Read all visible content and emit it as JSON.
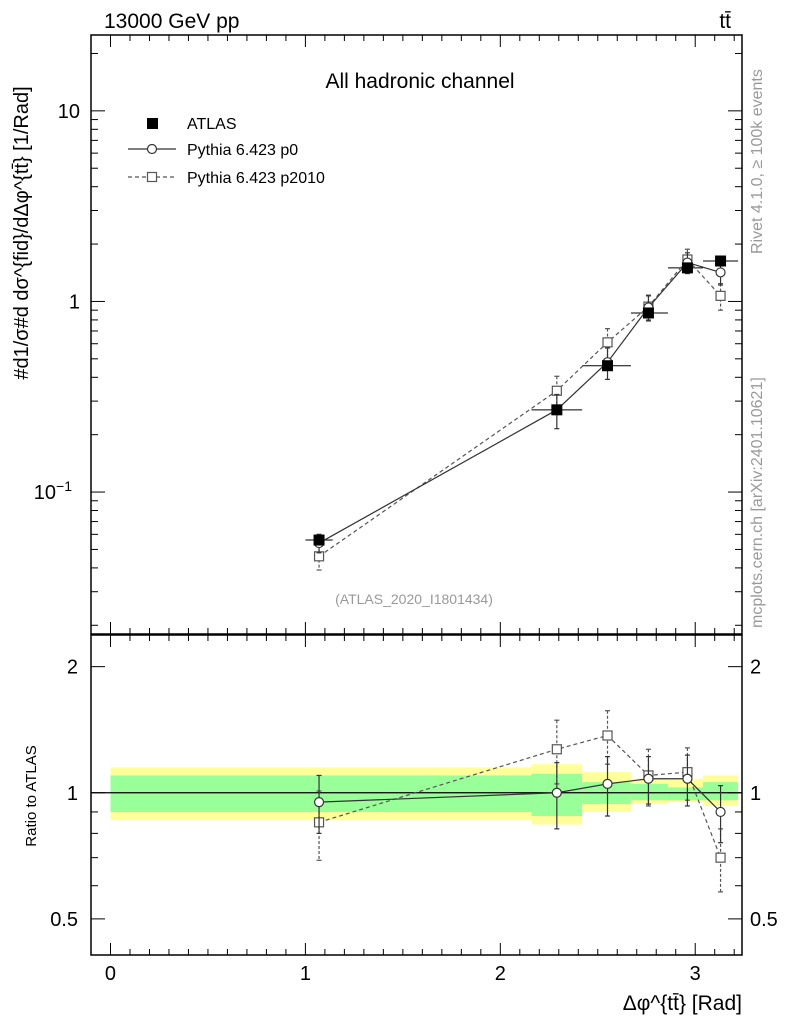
{
  "header": {
    "energy_label": "13000 GeV pp",
    "process_label": "tt̄"
  },
  "side_labels": {
    "rivet": "Rivet 4.1.0, ≥ 100k events",
    "mcplots": "mcplots.cern.ch [arXiv:2401.10621]"
  },
  "analysis_tag": "(ATLAS_2020_I1801434)",
  "colors": {
    "band_inner": "#99ff99",
    "band_outer": "#ffff99",
    "data": "#000000",
    "mc_p0": "#333333",
    "mc_p2010": "#555555",
    "tag": "#999999"
  },
  "chart_data": [
    {
      "type": "line",
      "title": "All hadronic channel",
      "ylabel": "#d1/σ#d dσ^{fid}/dΔφ^{tt̄} [1/Rad]",
      "yscale": "log",
      "xlim": [
        -0.1,
        3.24
      ],
      "ylim": [
        0.018,
        25
      ],
      "y_ticks": [
        {
          "value": 0.1,
          "base": "10",
          "exp": "−1"
        },
        {
          "value": 1,
          "base": "1",
          "exp": ""
        },
        {
          "value": 10,
          "base": "10",
          "exp": ""
        }
      ],
      "legend": [
        "ATLAS",
        "Pythia 6.423 p0",
        "Pythia 6.423 p2010"
      ],
      "series": [
        {
          "name": "ATLAS",
          "marker": "square-filled",
          "x": [
            1.07,
            2.29,
            2.55,
            2.76,
            2.96,
            3.13
          ],
          "y": [
            0.056,
            0.27,
            0.46,
            0.87,
            1.5,
            1.63
          ],
          "xerr": [
            [
              1.0,
              1.14
            ],
            [
              2.16,
              2.42
            ],
            [
              2.42,
              2.67
            ],
            [
              2.67,
              2.86
            ],
            [
              2.86,
              3.04
            ],
            [
              3.04,
              3.22
            ]
          ]
        },
        {
          "name": "Pythia 6.423 p0",
          "marker": "circle-open",
          "dash": false,
          "x": [
            1.07,
            2.29,
            2.55,
            2.76,
            2.96,
            3.13
          ],
          "y": [
            0.054,
            0.27,
            0.48,
            0.93,
            1.6,
            1.42
          ],
          "yerr": [
            0.006,
            0.055,
            0.09,
            0.14,
            0.2,
            0.2
          ]
        },
        {
          "name": "Pythia 6.423 p2010",
          "marker": "square-open",
          "dash": true,
          "x": [
            1.07,
            2.29,
            2.55,
            2.76,
            2.96,
            3.13
          ],
          "y": [
            0.046,
            0.34,
            0.61,
            0.94,
            1.66,
            1.07
          ],
          "yerr": [
            0.007,
            0.065,
            0.11,
            0.14,
            0.22,
            0.17
          ]
        }
      ]
    },
    {
      "type": "line",
      "ylabel": "Ratio to ATLAS",
      "xlabel": "Δφ^{tt̄} [Rad]",
      "yscale": "log",
      "xlim": [
        -0.1,
        3.24
      ],
      "ylim": [
        0.41,
        2.38
      ],
      "y_ticks": [
        {
          "value": 0.5,
          "label": "0.5"
        },
        {
          "value": 1,
          "label": "1"
        },
        {
          "value": 2,
          "label": "2"
        }
      ],
      "x_ticks": [
        {
          "value": 0,
          "label": "0"
        },
        {
          "value": 1,
          "label": "1"
        },
        {
          "value": 2,
          "label": "2"
        },
        {
          "value": 3,
          "label": "3"
        }
      ],
      "bands": [
        {
          "x0": 0.0,
          "x1": 2.16,
          "inner": [
            0.9,
            1.1
          ],
          "outer": [
            0.86,
            1.15
          ]
        },
        {
          "x0": 2.16,
          "x1": 2.42,
          "inner": [
            0.88,
            1.11
          ],
          "outer": [
            0.84,
            1.17
          ]
        },
        {
          "x0": 2.42,
          "x1": 2.67,
          "inner": [
            0.94,
            1.06
          ],
          "outer": [
            0.9,
            1.12
          ]
        },
        {
          "x0": 2.67,
          "x1": 2.86,
          "inner": [
            0.96,
            1.05
          ],
          "outer": [
            0.94,
            1.08
          ]
        },
        {
          "x0": 2.86,
          "x1": 3.04,
          "inner": [
            0.96,
            1.03
          ],
          "outer": [
            0.95,
            1.08
          ]
        },
        {
          "x0": 3.04,
          "x1": 3.22,
          "inner": [
            0.96,
            1.06
          ],
          "outer": [
            0.93,
            1.1
          ]
        }
      ],
      "series": [
        {
          "name": "Pythia 6.423 p0",
          "marker": "circle-open",
          "dash": false,
          "x": [
            1.07,
            2.29,
            2.55,
            2.76,
            2.96,
            3.13
          ],
          "y": [
            0.95,
            1.0,
            1.05,
            1.08,
            1.08,
            0.9
          ],
          "yerr": [
            0.15,
            0.18,
            0.17,
            0.14,
            0.15,
            0.14
          ]
        },
        {
          "name": "Pythia 6.423 p2010",
          "marker": "square-open",
          "dash": true,
          "x": [
            1.07,
            2.29,
            2.55,
            2.76,
            2.96,
            3.13
          ],
          "y": [
            0.85,
            1.27,
            1.37,
            1.1,
            1.12,
            0.7
          ],
          "yerr": [
            0.16,
            0.22,
            0.2,
            0.17,
            0.16,
            0.12
          ]
        }
      ]
    }
  ]
}
